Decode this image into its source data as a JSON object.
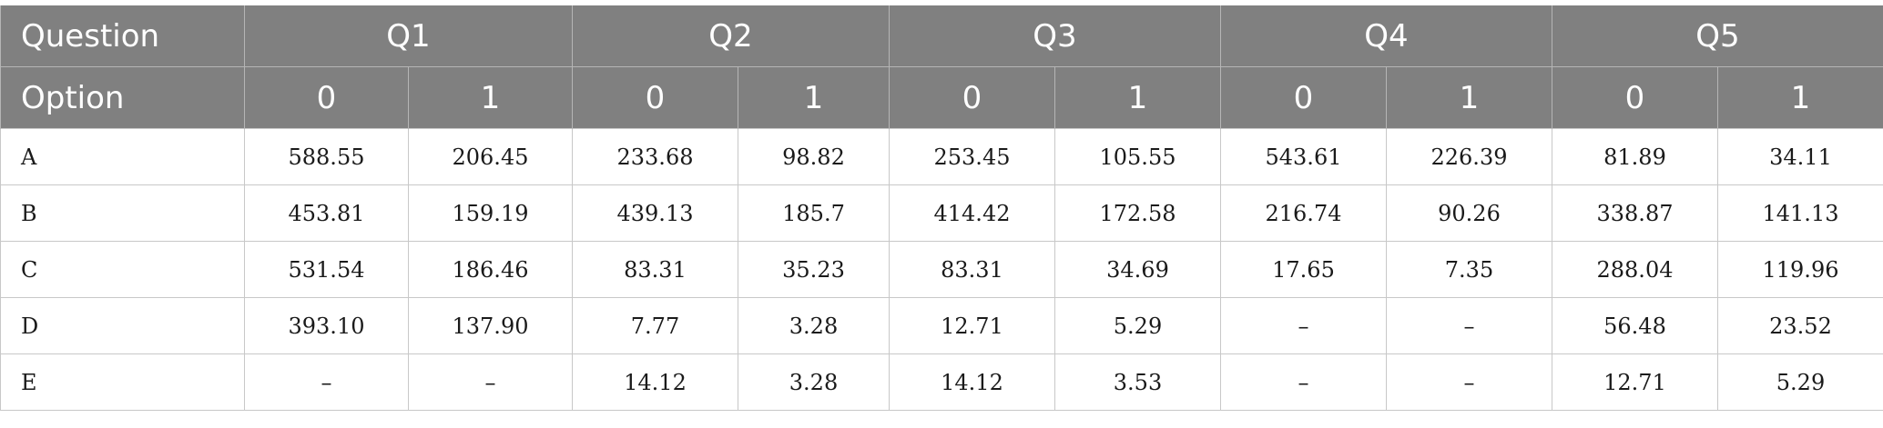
{
  "header": {
    "question_label": "Question",
    "option_label": "Option",
    "questions": [
      "Q1",
      "Q2",
      "Q3",
      "Q4",
      "Q5"
    ],
    "options": [
      "0",
      "1",
      "0",
      "1",
      "0",
      "1",
      "0",
      "1",
      "0",
      "1"
    ]
  },
  "rows": [
    {
      "label": "A",
      "values": [
        "588.55",
        "206.45",
        "233.68",
        "98.82",
        "253.45",
        "105.55",
        "543.61",
        "226.39",
        "81.89",
        "34.11"
      ]
    },
    {
      "label": "B",
      "values": [
        "453.81",
        "159.19",
        "439.13",
        "185.7",
        "414.42",
        "172.58",
        "216.74",
        "90.26",
        "338.87",
        "141.13"
      ]
    },
    {
      "label": "C",
      "values": [
        "531.54",
        "186.46",
        "83.31",
        "35.23",
        "83.31",
        "34.69",
        "17.65",
        "7.35",
        "288.04",
        "119.96"
      ]
    },
    {
      "label": "D",
      "values": [
        "393.10",
        "137.90",
        "7.77",
        "3.28",
        "12.71",
        "5.29",
        "–",
        "–",
        "56.48",
        "23.52"
      ]
    },
    {
      "label": "E",
      "values": [
        "–",
        "–",
        "14.12",
        "3.28",
        "14.12",
        "3.53",
        "–",
        "–",
        "12.71",
        "5.29"
      ]
    }
  ]
}
